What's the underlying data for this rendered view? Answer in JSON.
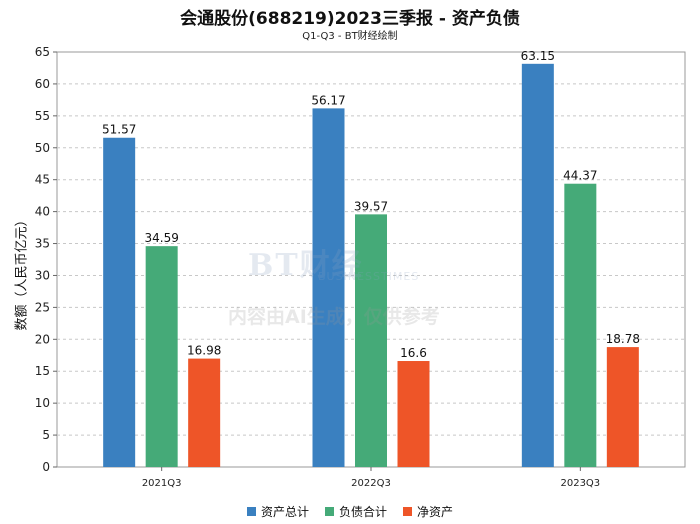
{
  "title": "会通股份(688219)2023三季报 - 资产负债",
  "subtitle": "Q1-Q3 - BT财经绘制",
  "watermark": {
    "logo": "BT财经",
    "biz": "BUSINESSTIMES",
    "note": "内容由AI生成，仅供参考"
  },
  "chart_data": {
    "type": "bar",
    "title": "会通股份(688219)2023三季报 - 资产负债",
    "subtitle": "Q1-Q3 - BT财经绘制",
    "ylabel": "数额（人民币亿元）",
    "xlabel": "",
    "ylim": [
      0,
      65
    ],
    "yticks": [
      0,
      5,
      10,
      15,
      20,
      25,
      30,
      35,
      40,
      45,
      50,
      55,
      60,
      65
    ],
    "grid": true,
    "legend_position": "bottom",
    "categories": [
      "2021Q3",
      "2022Q3",
      "2023Q3"
    ],
    "series": [
      {
        "name": "资产总计",
        "color": "#3a80c0",
        "values": [
          51.57,
          56.17,
          63.15
        ],
        "labels": [
          "51.57",
          "56.17",
          "63.15"
        ]
      },
      {
        "name": "负债合计",
        "color": "#45aa78",
        "values": [
          34.59,
          39.57,
          44.37
        ],
        "labels": [
          "34.59",
          "39.57",
          "44.37"
        ]
      },
      {
        "name": "净资产",
        "color": "#ee5528",
        "values": [
          16.98,
          16.6,
          18.78
        ],
        "labels": [
          "16.98",
          "16.6",
          "18.78"
        ]
      }
    ]
  }
}
